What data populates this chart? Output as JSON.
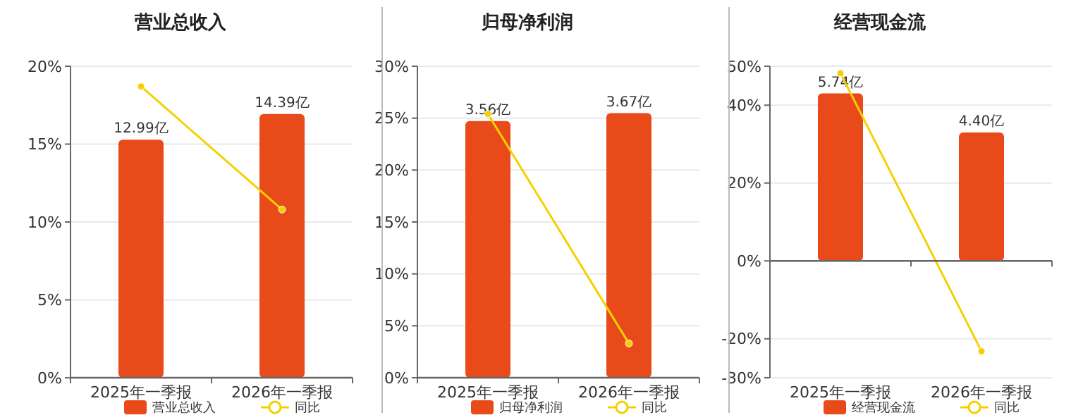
{
  "chart_data": [
    {
      "type": "bar",
      "title": "营业总收入",
      "categories": [
        "2025年一季报",
        "2026年一季报"
      ],
      "ylim": [
        0,
        20
      ],
      "yticks": [
        {
          "value": 0,
          "label": "0%"
        },
        {
          "value": 5,
          "label": "5%"
        },
        {
          "value": 10,
          "label": "10%"
        },
        {
          "value": 15,
          "label": "15%"
        },
        {
          "value": 20,
          "label": "20%"
        }
      ],
      "y2lim": [
        0,
        17
      ],
      "grid": "y",
      "legend": "bottom",
      "marker": "circle",
      "series": [
        {
          "name": "营业总收入",
          "axis": "y2",
          "color": "#e84a1a",
          "values": [
            12.99,
            14.39
          ],
          "value_labels": [
            "12.99亿",
            "14.39亿"
          ]
        },
        {
          "name": "同比",
          "type": "line",
          "color": "#f5d000",
          "values": [
            18.7,
            10.8
          ]
        }
      ]
    },
    {
      "type": "bar",
      "title": "归母净利润",
      "categories": [
        "2025年一季报",
        "2026年一季报"
      ],
      "ylim": [
        0,
        30
      ],
      "yticks": [
        {
          "value": 0,
          "label": "0%"
        },
        {
          "value": 5,
          "label": "5%"
        },
        {
          "value": 10,
          "label": "10%"
        },
        {
          "value": 15,
          "label": "15%"
        },
        {
          "value": 20,
          "label": "20%"
        },
        {
          "value": 25,
          "label": "25%"
        },
        {
          "value": 30,
          "label": "30%"
        }
      ],
      "y2lim": [
        0,
        4.32
      ],
      "grid": "y",
      "legend": "bottom",
      "marker": "circle",
      "series": [
        {
          "name": "归母净利润",
          "axis": "y2",
          "color": "#e84a1a",
          "values": [
            3.56,
            3.67
          ],
          "value_labels": [
            "3.56亿",
            "3.67亿"
          ]
        },
        {
          "name": "同比",
          "type": "line",
          "color": "#f5d000",
          "values": [
            25.4,
            3.3
          ]
        }
      ]
    },
    {
      "type": "bar",
      "title": "经营现金流",
      "categories": [
        "2025年一季报",
        "2026年一季报"
      ],
      "ylim": [
        -30,
        50
      ],
      "yticks": [
        {
          "value": -30,
          "label": "-30%"
        },
        {
          "value": -20,
          "label": "-20%"
        },
        {
          "value": 0,
          "label": "0%"
        },
        {
          "value": 20,
          "label": "20%"
        },
        {
          "value": 40,
          "label": "40%"
        },
        {
          "value": 50,
          "label": "50%"
        }
      ],
      "y2lim": [
        -4,
        6.67
      ],
      "grid": "y",
      "legend": "bottom",
      "marker": "circle",
      "series": [
        {
          "name": "经营现金流",
          "axis": "y2",
          "color": "#e84a1a",
          "values": [
            5.74,
            4.4
          ],
          "value_labels": [
            "5.74亿",
            "4.40亿"
          ]
        },
        {
          "name": "同比",
          "type": "line",
          "color": "#f5d000",
          "values": [
            48.2,
            -23.2
          ]
        }
      ]
    }
  ]
}
